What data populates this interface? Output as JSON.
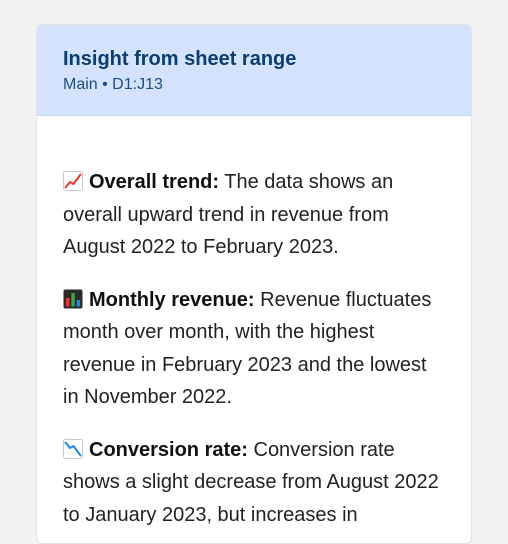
{
  "header": {
    "title": "Insight from sheet range",
    "subtitle": "Main • D1:J13"
  },
  "insights": [
    {
      "icon": "chart-increasing-icon",
      "label": "Overall trend:",
      "text": " The data shows an overall upward trend in revenue from August 2022 to February 2023."
    },
    {
      "icon": "bar-chart-icon",
      "label": "Monthly revenue:",
      "text": " Revenue fluctuates month over month, with the highest revenue in February 2023 and the lowest in November 2022."
    },
    {
      "icon": "chart-decreasing-icon",
      "label": "Conversion rate:",
      "text": " Conversion rate shows a slight decrease from August 2022 to January 2023, but increases in"
    }
  ]
}
